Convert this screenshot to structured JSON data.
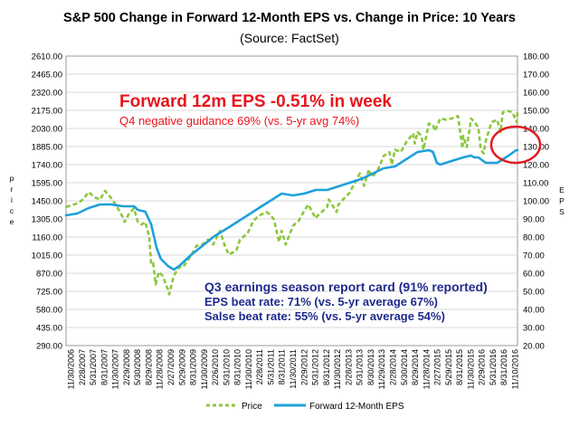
{
  "chart_data": {
    "type": "line",
    "title": "S&P 500 Change in Forward 12-Month EPS vs. Change in Price: 10 Years",
    "subtitle": "(Source: FactSet)",
    "y_left_label": "Price",
    "y_right_label": "EPS",
    "y_left_ticks": [
      "290.00",
      "435.00",
      "580.00",
      "725.00",
      "870.00",
      "1015.00",
      "1160.00",
      "1305.00",
      "1450.00",
      "1595.00",
      "1740.00",
      "1885.00",
      "2030.00",
      "2175.00",
      "2320.00",
      "2465.00",
      "2610.00"
    ],
    "y_right_ticks": [
      "20.00",
      "30.00",
      "40.00",
      "50.00",
      "60.00",
      "70.00",
      "80.00",
      "90.00",
      "100.00",
      "110.00",
      "120.00",
      "130.00",
      "140.00",
      "150.00",
      "160.00",
      "170.00",
      "180.00"
    ],
    "ylim_left": [
      290,
      2610
    ],
    "ylim_right": [
      20,
      180
    ],
    "x_ticks": [
      "11/30/2006",
      "2/28/2007",
      "5/31/2007",
      "8/31/2007",
      "11/30/2007",
      "2/29/2008",
      "5/30/2008",
      "8/29/2008",
      "11/28/2008",
      "2/27/2009",
      "5/29/2009",
      "8/31/2009",
      "11/30/2009",
      "2/26/2010",
      "5/31/2010",
      "8/31/2010",
      "11/30/2010",
      "2/28/2011",
      "5/31/2011",
      "8/31/2011",
      "11/30/2011",
      "2/29/2012",
      "5/31/2012",
      "8/31/2012",
      "11/30/2012",
      "2/28/2013",
      "5/31/2013",
      "8/30/2013",
      "11/29/2013",
      "2/28/2014",
      "5/30/2014",
      "8/29/2014",
      "11/28/2014",
      "2/27/2015",
      "5/29/2015",
      "8/31/2015",
      "11/30/2015",
      "2/29/2016",
      "5/31/2016",
      "8/31/2016",
      "11/10/2016"
    ],
    "x_range": [
      "2006-11-30",
      "2016-11-10"
    ],
    "grid": true,
    "legend_position": "bottom",
    "series": [
      {
        "name": "Price",
        "axis": "left",
        "color": "#8dc63f",
        "style": "dashed",
        "points": [
          [
            "2006-11-30",
            1400
          ],
          [
            "2007-02-28",
            1430
          ],
          [
            "2007-04-15",
            1460
          ],
          [
            "2007-05-31",
            1520
          ],
          [
            "2007-07-15",
            1480
          ],
          [
            "2007-08-31",
            1460
          ],
          [
            "2007-10-10",
            1530
          ],
          [
            "2007-11-30",
            1470
          ],
          [
            "2008-01-15",
            1400
          ],
          [
            "2008-02-29",
            1320
          ],
          [
            "2008-03-15",
            1280
          ],
          [
            "2008-04-15",
            1340
          ],
          [
            "2008-05-30",
            1390
          ],
          [
            "2008-06-30",
            1280
          ],
          [
            "2008-07-31",
            1260
          ],
          [
            "2008-08-29",
            1280
          ],
          [
            "2008-09-30",
            1160
          ],
          [
            "2008-10-15",
            940
          ],
          [
            "2008-10-31",
            950
          ],
          [
            "2008-11-20",
            780
          ],
          [
            "2008-12-15",
            880
          ],
          [
            "2009-01-15",
            850
          ],
          [
            "2009-02-27",
            740
          ],
          [
            "2009-03-09",
            700
          ],
          [
            "2009-04-15",
            850
          ],
          [
            "2009-05-29",
            920
          ],
          [
            "2009-06-30",
            920
          ],
          [
            "2009-08-31",
            1010
          ],
          [
            "2009-10-15",
            1090
          ],
          [
            "2009-11-30",
            1100
          ],
          [
            "2010-01-15",
            1140
          ],
          [
            "2010-02-26",
            1100
          ],
          [
            "2010-04-23",
            1210
          ],
          [
            "2010-05-31",
            1090
          ],
          [
            "2010-07-02",
            1020
          ],
          [
            "2010-08-31",
            1050
          ],
          [
            "2010-09-30",
            1140
          ],
          [
            "2010-11-30",
            1190
          ],
          [
            "2011-01-15",
            1290
          ],
          [
            "2011-02-28",
            1330
          ],
          [
            "2011-04-29",
            1360
          ],
          [
            "2011-05-31",
            1340
          ],
          [
            "2011-06-30",
            1300
          ],
          [
            "2011-08-10",
            1120
          ],
          [
            "2011-08-31",
            1210
          ],
          [
            "2011-10-03",
            1100
          ],
          [
            "2011-11-30",
            1250
          ],
          [
            "2012-01-15",
            1290
          ],
          [
            "2012-02-29",
            1370
          ],
          [
            "2012-04-02",
            1420
          ],
          [
            "2012-05-31",
            1310
          ],
          [
            "2012-06-15",
            1330
          ],
          [
            "2012-08-31",
            1400
          ],
          [
            "2012-09-14",
            1460
          ],
          [
            "2012-11-15",
            1360
          ],
          [
            "2012-11-30",
            1420
          ],
          [
            "2013-01-15",
            1470
          ],
          [
            "2013-02-28",
            1515
          ],
          [
            "2013-05-21",
            1670
          ],
          [
            "2013-06-24",
            1570
          ],
          [
            "2013-08-02",
            1700
          ],
          [
            "2013-08-30",
            1640
          ],
          [
            "2013-10-15",
            1700
          ],
          [
            "2013-11-29",
            1810
          ],
          [
            "2014-01-15",
            1840
          ],
          [
            "2014-02-03",
            1740
          ],
          [
            "2014-02-28",
            1860
          ],
          [
            "2014-04-15",
            1840
          ],
          [
            "2014-05-30",
            1920
          ],
          [
            "2014-07-24",
            1990
          ],
          [
            "2014-08-07",
            1910
          ],
          [
            "2014-08-29",
            2000
          ],
          [
            "2014-09-30",
            1970
          ],
          [
            "2014-10-15",
            1860
          ],
          [
            "2014-11-28",
            2070
          ],
          [
            "2014-12-31",
            2060
          ],
          [
            "2015-01-15",
            2010
          ],
          [
            "2015-02-27",
            2110
          ],
          [
            "2015-04-15",
            2100
          ],
          [
            "2015-05-29",
            2110
          ],
          [
            "2015-07-20",
            2130
          ],
          [
            "2015-08-25",
            1870
          ],
          [
            "2015-08-31",
            1970
          ],
          [
            "2015-09-29",
            1880
          ],
          [
            "2015-11-03",
            2110
          ],
          [
            "2015-11-30",
            2080
          ],
          [
            "2015-12-31",
            2040
          ],
          [
            "2016-01-20",
            1860
          ],
          [
            "2016-02-11",
            1830
          ],
          [
            "2016-02-29",
            1930
          ],
          [
            "2016-04-15",
            2080
          ],
          [
            "2016-05-31",
            2100
          ],
          [
            "2016-06-27",
            2000
          ],
          [
            "2016-07-15",
            2160
          ],
          [
            "2016-08-31",
            2170
          ],
          [
            "2016-09-30",
            2160
          ],
          [
            "2016-11-04",
            2080
          ],
          [
            "2016-11-10",
            2170
          ]
        ]
      },
      {
        "name": "Forward 12-Month EPS",
        "axis": "right",
        "color": "#1ea0dc",
        "style": "solid",
        "points": [
          [
            "2006-11-30",
            92
          ],
          [
            "2007-02-28",
            93
          ],
          [
            "2007-05-31",
            96
          ],
          [
            "2007-08-31",
            98
          ],
          [
            "2007-11-30",
            98
          ],
          [
            "2008-02-29",
            97
          ],
          [
            "2008-05-30",
            97
          ],
          [
            "2008-06-30",
            95
          ],
          [
            "2008-08-29",
            94
          ],
          [
            "2008-10-15",
            87
          ],
          [
            "2008-11-28",
            74
          ],
          [
            "2008-12-31",
            68
          ],
          [
            "2009-02-27",
            64
          ],
          [
            "2009-04-15",
            62
          ],
          [
            "2009-05-29",
            64
          ],
          [
            "2009-08-31",
            70
          ],
          [
            "2009-11-30",
            75
          ],
          [
            "2010-02-26",
            80
          ],
          [
            "2010-05-31",
            84
          ],
          [
            "2010-08-31",
            88
          ],
          [
            "2010-11-30",
            92
          ],
          [
            "2011-02-28",
            96
          ],
          [
            "2011-05-31",
            100
          ],
          [
            "2011-08-31",
            104
          ],
          [
            "2011-11-30",
            103
          ],
          [
            "2012-02-29",
            104
          ],
          [
            "2012-05-31",
            106
          ],
          [
            "2012-08-31",
            106
          ],
          [
            "2012-11-30",
            108
          ],
          [
            "2013-02-28",
            110
          ],
          [
            "2013-05-31",
            112
          ],
          [
            "2013-08-30",
            115
          ],
          [
            "2013-11-29",
            118
          ],
          [
            "2014-02-28",
            119
          ],
          [
            "2014-05-30",
            123
          ],
          [
            "2014-08-29",
            127
          ],
          [
            "2014-11-28",
            128
          ],
          [
            "2014-12-31",
            127
          ],
          [
            "2015-01-31",
            121
          ],
          [
            "2015-02-27",
            120
          ],
          [
            "2015-05-29",
            122
          ],
          [
            "2015-08-31",
            124
          ],
          [
            "2015-10-31",
            125
          ],
          [
            "2015-11-30",
            124
          ],
          [
            "2015-12-31",
            124
          ],
          [
            "2016-02-29",
            121
          ],
          [
            "2016-05-31",
            121
          ],
          [
            "2016-08-31",
            125
          ],
          [
            "2016-10-31",
            128
          ],
          [
            "2016-11-10",
            128
          ]
        ]
      }
    ],
    "annotations": [
      {
        "text": "Forward 12m EPS -0.51% in week",
        "color": "#e8141c"
      },
      {
        "text": "Q4 negative guidance 69% (vs. 5-yr avg 74%)",
        "color": "#e8141c"
      },
      {
        "text": "Q3 earnings season report card (91% reported)",
        "color": "#1f2b8c"
      },
      {
        "text": "EPS beat rate: 71% (vs. 5-yr average 67%)",
        "color": "#1f2b8c"
      },
      {
        "text": "Salse beat rate: 55% (vs. 5-yr average 54%)",
        "color": "#1f2b8c"
      }
    ],
    "highlight_circle_color": "#e01b22"
  }
}
